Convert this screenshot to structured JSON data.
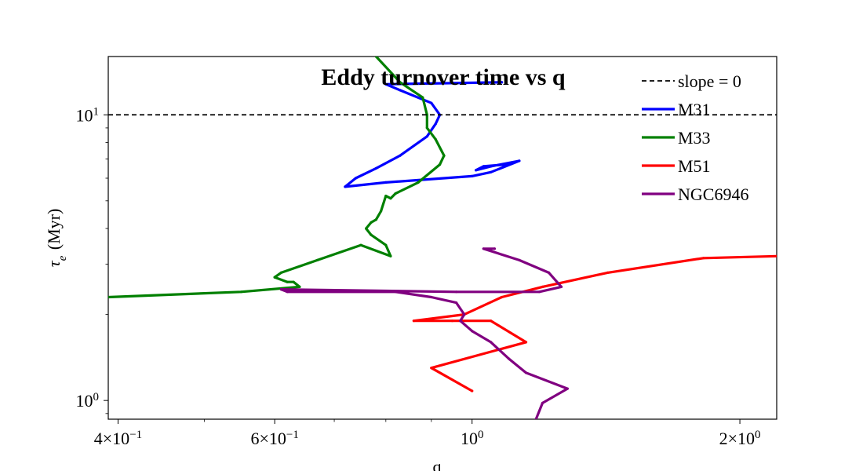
{
  "chart_data": {
    "type": "line",
    "title": "Eddy turnover time vs q",
    "xlabel": "q",
    "ylabel": "τ_e (Myr)",
    "xscale": "log",
    "yscale": "log",
    "xlim": [
      0.39,
      2.2
    ],
    "ylim": [
      0.86,
      16.0
    ],
    "xticks": [
      {
        "value": 0.4,
        "base": "4×10",
        "exp": "−1"
      },
      {
        "value": 0.6,
        "base": "6×10",
        "exp": "−1"
      },
      {
        "value": 1.0,
        "base": "10",
        "exp": "0"
      },
      {
        "value": 2.0,
        "base": "2×10",
        "exp": "0"
      }
    ],
    "yticks": [
      {
        "value": 1.0,
        "base": "10",
        "exp": "0"
      },
      {
        "value": 10.0,
        "base": "10",
        "exp": "1"
      }
    ],
    "legend_position": "top-right",
    "reference_line": {
      "name": "slope = 0",
      "y": 10.0,
      "color": "#000000",
      "style": "dashed"
    },
    "series": [
      {
        "name": "M31",
        "color": "#0000ff",
        "points": [
          [
            1.08,
            13.0
          ],
          [
            0.8,
            12.8
          ],
          [
            0.83,
            12.2
          ],
          [
            0.9,
            11.0
          ],
          [
            0.92,
            10.0
          ],
          [
            0.91,
            9.3
          ],
          [
            0.89,
            8.4
          ],
          [
            0.83,
            7.2
          ],
          [
            0.78,
            6.5
          ],
          [
            0.74,
            6.0
          ],
          [
            0.72,
            5.6
          ],
          [
            0.8,
            5.8
          ],
          [
            1.0,
            6.1
          ],
          [
            1.05,
            6.3
          ],
          [
            1.13,
            6.9
          ],
          [
            1.05,
            6.6
          ],
          [
            1.01,
            6.4
          ],
          [
            1.03,
            6.6
          ],
          [
            1.09,
            6.7
          ]
        ]
      },
      {
        "name": "M33",
        "color": "#008000",
        "points": [
          [
            0.78,
            16.0
          ],
          [
            0.83,
            13.0
          ],
          [
            0.88,
            11.5
          ],
          [
            0.89,
            10.0
          ],
          [
            0.89,
            9.0
          ],
          [
            0.91,
            8.2
          ],
          [
            0.93,
            7.2
          ],
          [
            0.92,
            6.7
          ],
          [
            0.87,
            5.8
          ],
          [
            0.82,
            5.3
          ],
          [
            0.81,
            5.1
          ],
          [
            0.8,
            5.2
          ],
          [
            0.79,
            4.6
          ],
          [
            0.78,
            4.3
          ],
          [
            0.77,
            4.2
          ],
          [
            0.76,
            4.0
          ],
          [
            0.77,
            3.8
          ],
          [
            0.8,
            3.5
          ],
          [
            0.81,
            3.2
          ],
          [
            0.75,
            3.5
          ],
          [
            0.67,
            3.1
          ],
          [
            0.61,
            2.8
          ],
          [
            0.6,
            2.7
          ],
          [
            0.62,
            2.6
          ],
          [
            0.63,
            2.6
          ],
          [
            0.64,
            2.5
          ],
          [
            0.55,
            2.4
          ],
          [
            0.39,
            2.3
          ]
        ]
      },
      {
        "name": "M51",
        "color": "#ff0000",
        "points": [
          [
            2.2,
            3.2
          ],
          [
            1.82,
            3.15
          ],
          [
            1.42,
            2.8
          ],
          [
            1.2,
            2.5
          ],
          [
            1.08,
            2.3
          ],
          [
            0.98,
            2.0
          ],
          [
            0.86,
            1.9
          ],
          [
            0.95,
            1.9
          ],
          [
            1.05,
            1.9
          ],
          [
            1.15,
            1.6
          ],
          [
            0.9,
            1.3
          ],
          [
            1.0,
            1.08
          ]
        ]
      },
      {
        "name": "NGC6946",
        "color": "#800080",
        "points": [
          [
            1.06,
            3.4
          ],
          [
            1.03,
            3.4
          ],
          [
            1.13,
            3.1
          ],
          [
            1.22,
            2.8
          ],
          [
            1.26,
            2.5
          ],
          [
            1.19,
            2.4
          ],
          [
            0.96,
            2.4
          ],
          [
            0.61,
            2.45
          ],
          [
            0.62,
            2.4
          ],
          [
            0.82,
            2.4
          ],
          [
            0.9,
            2.3
          ],
          [
            0.96,
            2.2
          ],
          [
            0.98,
            2.0
          ],
          [
            0.97,
            1.9
          ],
          [
            1.0,
            1.75
          ],
          [
            1.05,
            1.6
          ],
          [
            1.1,
            1.4
          ],
          [
            1.15,
            1.25
          ],
          [
            1.28,
            1.1
          ],
          [
            1.2,
            0.98
          ],
          [
            1.18,
            0.86
          ]
        ]
      }
    ]
  }
}
